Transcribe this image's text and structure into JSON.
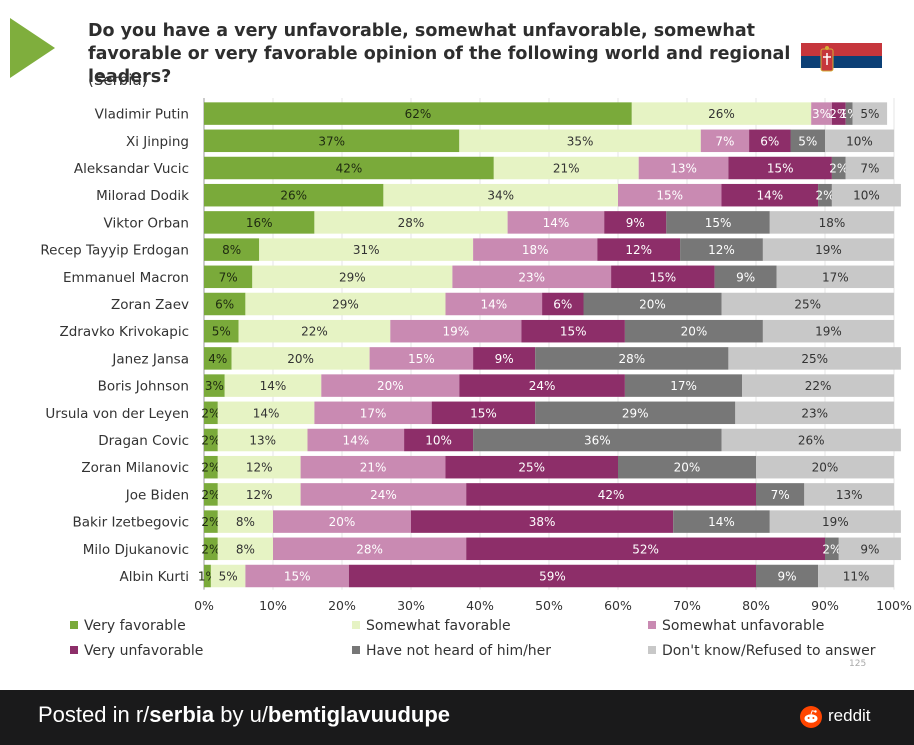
{
  "title": "Do you have a very unfavorable, somewhat unfavorable, somewhat favorable or very favorable opinion of the following world and regional leaders?",
  "subtitle": "(Serbia)",
  "page_number": "125",
  "footer": {
    "prefix": "Posted in r/",
    "subreddit": "serbia",
    "by": " by u/",
    "user": "bemtiglavuudupe",
    "brand": "reddit"
  },
  "colors": {
    "very_favorable": "#7aaa3a",
    "somewhat_favorable": "#e6f3c4",
    "somewhat_unfavorable": "#c98ab2",
    "very_unfavorable": "#8d2e69",
    "not_heard": "#777777",
    "dont_know": "#c8c8c8",
    "accent_arrow": "#7fae3d"
  },
  "chart_data": {
    "type": "bar",
    "orientation": "horizontal",
    "stacked": true,
    "percent": true,
    "xlim": [
      0,
      100
    ],
    "xticks": [
      "0%",
      "10%",
      "20%",
      "30%",
      "40%",
      "50%",
      "60%",
      "70%",
      "80%",
      "90%",
      "100%"
    ],
    "categories": [
      "Vladimir Putin",
      "Xi Jinping",
      "Aleksandar Vucic",
      "Milorad Dodik",
      "Viktor Orban",
      "Recep Tayyip Erdogan",
      "Emmanuel Macron",
      "Zoran Zaev",
      "Zdravko Krivokapic",
      "Janez Jansa",
      "Boris Johnson",
      "Ursula von der Leyen",
      "Dragan Covic",
      "Zoran Milanovic",
      "Joe Biden",
      "Bakir Izetbegovic",
      "Milo Djukanovic",
      "Albin Kurti"
    ],
    "series": [
      {
        "name": "Very favorable",
        "key": "very_favorable",
        "values": [
          62,
          37,
          42,
          26,
          16,
          8,
          7,
          6,
          5,
          4,
          3,
          2,
          2,
          2,
          2,
          2,
          2,
          1
        ]
      },
      {
        "name": "Somewhat favorable",
        "key": "somewhat_favorable",
        "values": [
          26,
          35,
          21,
          34,
          28,
          31,
          29,
          29,
          22,
          20,
          14,
          14,
          13,
          12,
          12,
          8,
          8,
          5
        ]
      },
      {
        "name": "Somewhat unfavorable",
        "key": "somewhat_unfavorable",
        "values": [
          3,
          7,
          13,
          15,
          14,
          18,
          23,
          14,
          19,
          15,
          20,
          17,
          14,
          21,
          24,
          20,
          28,
          15
        ]
      },
      {
        "name": "Very unfavorable",
        "key": "very_unfavorable",
        "values": [
          2,
          6,
          15,
          14,
          9,
          12,
          15,
          6,
          15,
          9,
          24,
          15,
          10,
          25,
          42,
          38,
          52,
          59
        ]
      },
      {
        "name": "Have not heard of him/her",
        "key": "not_heard",
        "values": [
          1,
          5,
          2,
          2,
          15,
          12,
          9,
          20,
          20,
          28,
          17,
          29,
          36,
          20,
          7,
          14,
          2,
          9
        ]
      },
      {
        "name": "Don't know/Refused to answer",
        "key": "dont_know",
        "values": [
          5,
          10,
          7,
          10,
          18,
          19,
          17,
          25,
          19,
          25,
          22,
          23,
          26,
          20,
          13,
          19,
          9,
          11
        ]
      }
    ],
    "legend": [
      {
        "label": "Very favorable",
        "key": "very_favorable"
      },
      {
        "label": "Somewhat favorable",
        "key": "somewhat_favorable"
      },
      {
        "label": "Somewhat unfavorable",
        "key": "somewhat_unfavorable"
      },
      {
        "label": "Very unfavorable",
        "key": "very_unfavorable"
      },
      {
        "label": "Have not heard of him/her",
        "key": "not_heard"
      },
      {
        "label": "Don't know/Refused to answer",
        "key": "dont_know"
      }
    ],
    "legend_position": "bottom"
  }
}
